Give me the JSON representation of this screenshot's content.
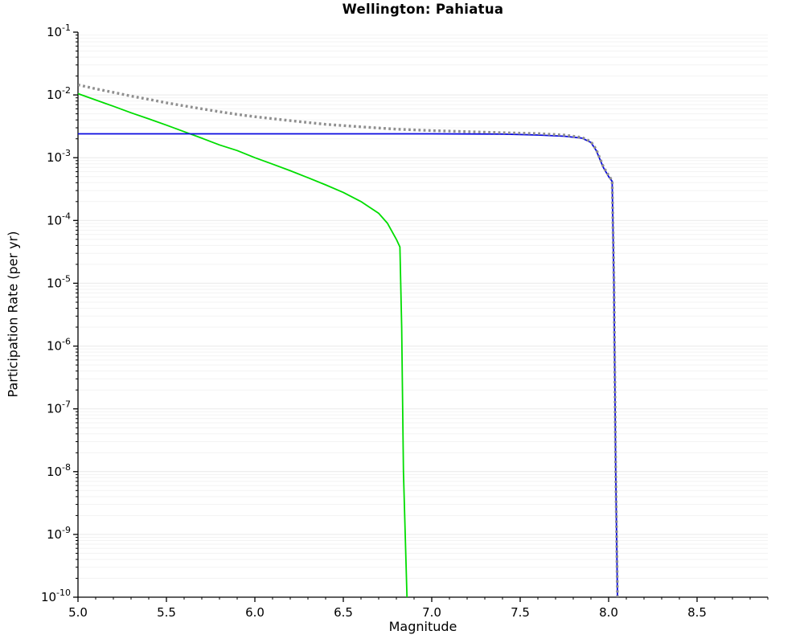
{
  "chart_data": {
    "type": "line",
    "title": "Wellington: Pahiatua",
    "xlabel": "Magnitude",
    "ylabel": "Participation Rate (per yr)",
    "xlim": [
      5.0,
      8.9
    ],
    "ylim_log10": [
      -10,
      -1
    ],
    "x_ticks": [
      5.0,
      5.5,
      6.0,
      6.5,
      7.0,
      7.5,
      8.0,
      8.5
    ],
    "y_tick_exponents": [
      -1,
      -2,
      -3,
      -4,
      -5,
      -6,
      -7,
      -8,
      -9,
      -10
    ],
    "grid": "horizontal-log-minor",
    "grid_major_color": "#e9e9e9",
    "grid_minor_color": "#f3f3f3",
    "legend": "none",
    "background_color": "#ffffff",
    "axis_color": "#000000",
    "series": [
      {
        "name": "green-solid-curve",
        "color": "#00dd00",
        "style": "solid",
        "width": 1.8,
        "points": [
          [
            5.0,
            0.0105
          ],
          [
            5.1,
            0.0083
          ],
          [
            5.2,
            0.0066
          ],
          [
            5.3,
            0.0052
          ],
          [
            5.4,
            0.00415
          ],
          [
            5.5,
            0.0033
          ],
          [
            5.6,
            0.0026
          ],
          [
            5.7,
            0.00205
          ],
          [
            5.8,
            0.0016
          ],
          [
            5.9,
            0.0013
          ],
          [
            6.0,
            0.001
          ],
          [
            6.1,
            0.00079
          ],
          [
            6.2,
            0.00062
          ],
          [
            6.3,
            0.00048
          ],
          [
            6.4,
            0.00037
          ],
          [
            6.5,
            0.00028
          ],
          [
            6.6,
            0.0002
          ],
          [
            6.7,
            0.00013
          ],
          [
            6.75,
            9e-05
          ],
          [
            6.8,
            5e-05
          ],
          [
            6.82,
            3.8e-05
          ],
          [
            6.83,
            2e-06
          ],
          [
            6.84,
            1e-08
          ],
          [
            6.86,
            1e-10
          ],
          [
            6.87,
            4e-11
          ]
        ]
      },
      {
        "name": "blue-solid-curve",
        "color": "#0a0ae0",
        "style": "solid",
        "width": 1.8,
        "points": [
          [
            5.0,
            0.0024
          ],
          [
            6.0,
            0.0024
          ],
          [
            7.0,
            0.0024
          ],
          [
            7.4,
            0.00238
          ],
          [
            7.6,
            0.0023
          ],
          [
            7.75,
            0.0022
          ],
          [
            7.85,
            0.00205
          ],
          [
            7.9,
            0.00175
          ],
          [
            7.93,
            0.0013
          ],
          [
            7.97,
            0.0007
          ],
          [
            8.0,
            0.0005
          ],
          [
            8.02,
            0.00042
          ],
          [
            8.03,
            1e-05
          ],
          [
            8.04,
            1e-08
          ],
          [
            8.05,
            1e-10
          ],
          [
            8.055,
            4e-11
          ]
        ]
      },
      {
        "name": "gray-dotted-curve",
        "color": "#8f8f8f",
        "style": "dotted",
        "width": 3.4,
        "dash": "2.8 3.4",
        "points": [
          [
            5.0,
            0.0145
          ],
          [
            5.1,
            0.0125
          ],
          [
            5.2,
            0.011
          ],
          [
            5.3,
            0.0096
          ],
          [
            5.4,
            0.0085
          ],
          [
            5.5,
            0.0075
          ],
          [
            5.6,
            0.0067
          ],
          [
            5.7,
            0.006
          ],
          [
            5.8,
            0.0054
          ],
          [
            5.9,
            0.0049
          ],
          [
            6.0,
            0.0045
          ],
          [
            6.2,
            0.0039
          ],
          [
            6.4,
            0.0034
          ],
          [
            6.6,
            0.0031
          ],
          [
            6.8,
            0.00285
          ],
          [
            7.0,
            0.0027
          ],
          [
            7.2,
            0.0026
          ],
          [
            7.4,
            0.0025
          ],
          [
            7.6,
            0.00242
          ],
          [
            7.75,
            0.0023
          ],
          [
            7.85,
            0.0021
          ],
          [
            7.9,
            0.0018
          ],
          [
            7.93,
            0.00135
          ],
          [
            7.97,
            0.00072
          ],
          [
            8.0,
            0.00052
          ],
          [
            8.02,
            0.00043
          ],
          [
            8.03,
            1.1e-05
          ],
          [
            8.04,
            1.1e-08
          ],
          [
            8.05,
            1e-10
          ],
          [
            8.055,
            4e-11
          ]
        ]
      }
    ]
  }
}
